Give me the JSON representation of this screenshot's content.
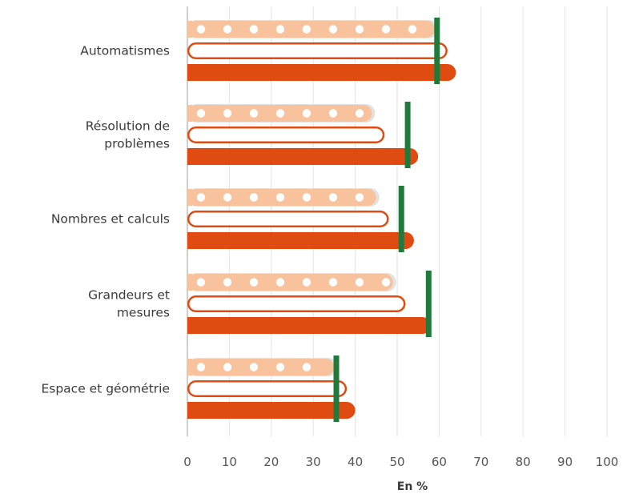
{
  "chart_data": {
    "type": "bar",
    "orientation": "horizontal",
    "categories": [
      [
        "Automatismes"
      ],
      [
        "Résolution de",
        "problèmes"
      ],
      [
        "Nombres et calculs"
      ],
      [
        "Grandeurs et",
        "mesures"
      ],
      [
        "Espace et géométrie"
      ]
    ],
    "series": [
      {
        "style": "dotted-light",
        "values": [
          59,
          44,
          45,
          49,
          35
        ]
      },
      {
        "style": "outline",
        "values": [
          62,
          47,
          48,
          52,
          38
        ]
      },
      {
        "style": "solid",
        "values": [
          64,
          55,
          54,
          58,
          40
        ]
      }
    ],
    "markers": {
      "values": [
        59.5,
        52.5,
        51,
        57.5,
        35.5
      ]
    },
    "xlim": [
      0,
      100
    ],
    "xticks": [
      "0",
      "10",
      "20",
      "30",
      "40",
      "50",
      "60",
      "70",
      "80",
      "90",
      "100"
    ],
    "xlabel": "En %",
    "ylabel": "",
    "title": "",
    "grid": true,
    "colors": {
      "solid": "#e04b12",
      "outline": "#e04b12",
      "dotted_fill": "#f8c39c",
      "dotted_dot": "#ffffff",
      "dotted_shadow": "#e2e2e2",
      "marker": "#217a3c",
      "grid": "#e3e3e3",
      "axis": "#bdbdbd"
    }
  }
}
